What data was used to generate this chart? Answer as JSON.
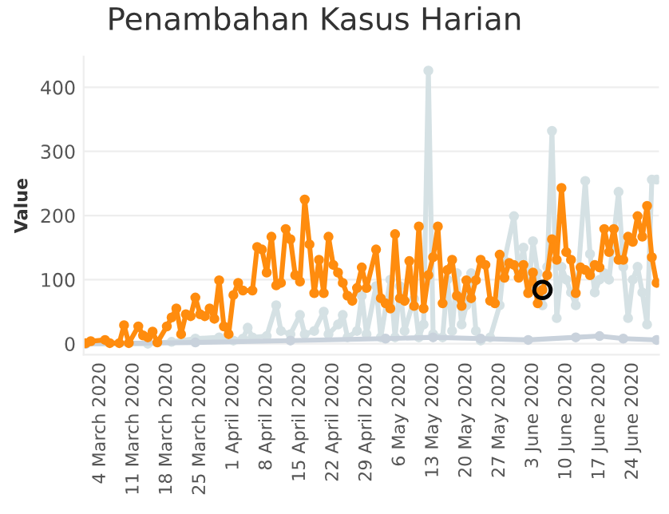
{
  "chart_data": {
    "type": "line",
    "title": "Penambahan Kasus Harian",
    "ylabel": "Value",
    "marker": "circle",
    "grid": "y",
    "xlim": [
      "2020-02-29T12:00",
      "2020-06-29T12:00"
    ],
    "xticks": [
      {
        "value": "2020-03-04",
        "label": "4 March 2020"
      },
      {
        "value": "2020-03-11",
        "label": "11 March 2020"
      },
      {
        "value": "2020-03-18",
        "label": "18 March 2020"
      },
      {
        "value": "2020-03-25",
        "label": "25 March 2020"
      },
      {
        "value": "2020-04-01",
        "label": "1 April 2020"
      },
      {
        "value": "2020-04-08",
        "label": "8 April 2020"
      },
      {
        "value": "2020-04-15",
        "label": "15 April 2020"
      },
      {
        "value": "2020-04-22",
        "label": "22 April 2020"
      },
      {
        "value": "2020-04-29",
        "label": "29 April 2020"
      },
      {
        "value": "2020-05-06",
        "label": "6 May 2020"
      },
      {
        "value": "2020-05-13",
        "label": "13 May 2020"
      },
      {
        "value": "2020-05-20",
        "label": "20 May 2020"
      },
      {
        "value": "2020-05-27",
        "label": "27 May 2020"
      },
      {
        "value": "2020-06-03",
        "label": "3 June 2020"
      },
      {
        "value": "2020-06-10",
        "label": "10 June 2020"
      },
      {
        "value": "2020-06-17",
        "label": "17 June 2020"
      },
      {
        "value": "2020-06-24",
        "label": "24 June 2020"
      }
    ],
    "ylim": [
      -17,
      448
    ],
    "yticks": [
      0,
      100,
      200,
      300,
      400
    ],
    "series": [
      {
        "color": "#c9d2dc",
        "x": [
          "2020-03-01",
          "2020-03-24",
          "2020-04-13",
          "2020-05-03",
          "2020-05-13",
          "2020-05-23",
          "2020-06-02",
          "2020-06-12",
          "2020-06-17",
          "2020-06-22",
          "2020-06-29"
        ],
        "values": [
          0,
          2,
          5,
          8,
          10,
          8,
          6,
          10,
          12,
          8,
          6
        ]
      },
      {
        "color": "#d5e1e4",
        "x": [
          "2020-03-01",
          "2020-03-14",
          "2020-03-19",
          "2020-03-24",
          "2020-03-29",
          "2020-04-01",
          "2020-04-03",
          "2020-04-04",
          "2020-04-05",
          "2020-04-08",
          "2020-04-10",
          "2020-04-11",
          "2020-04-13",
          "2020-04-15",
          "2020-04-16",
          "2020-04-18",
          "2020-04-20",
          "2020-04-21",
          "2020-04-23",
          "2020-04-24",
          "2020-04-25",
          "2020-04-27",
          "2020-04-28",
          "2020-04-29",
          "2020-05-01",
          "2020-05-02",
          "2020-05-04",
          "2020-05-05",
          "2020-05-06",
          "2020-05-07",
          "2020-05-09",
          "2020-05-10",
          "2020-05-11",
          "2020-05-12",
          "2020-05-13",
          "2020-05-15",
          "2020-05-16",
          "2020-05-17",
          "2020-05-18",
          "2020-05-19",
          "2020-05-20",
          "2020-05-21",
          "2020-05-22",
          "2020-05-23",
          "2020-05-25",
          "2020-05-27",
          "2020-05-28",
          "2020-05-30",
          "2020-05-31",
          "2020-06-01",
          "2020-06-02",
          "2020-06-03",
          "2020-06-04",
          "2020-06-05",
          "2020-06-06",
          "2020-06-07",
          "2020-06-08",
          "2020-06-09",
          "2020-06-10",
          "2020-06-11",
          "2020-06-12",
          "2020-06-14",
          "2020-06-15",
          "2020-06-16",
          "2020-06-17",
          "2020-06-18",
          "2020-06-19",
          "2020-06-21",
          "2020-06-22",
          "2020-06-23",
          "2020-06-24",
          "2020-06-25",
          "2020-06-26",
          "2020-06-27",
          "2020-06-28",
          "2020-06-29"
        ],
        "values": [
          0,
          0,
          3,
          8,
          10,
          5,
          8,
          25,
          10,
          12,
          60,
          20,
          15,
          45,
          15,
          20,
          50,
          15,
          30,
          45,
          10,
          20,
          75,
          15,
          90,
          10,
          100,
          10,
          90,
          20,
          70,
          10,
          30,
          426,
          15,
          10,
          100,
          20,
          110,
          30,
          60,
          110,
          20,
          5,
          10,
          60,
          130,
          199,
          110,
          150,
          80,
          160,
          110,
          60,
          120,
          332,
          40,
          120,
          100,
          80,
          60,
          254,
          140,
          80,
          100,
          110,
          100,
          237,
          120,
          40,
          100,
          120,
          80,
          30,
          256,
          256
        ]
      },
      {
        "color": "#ff8c0e",
        "x": [
          "2020-03-01",
          "2020-03-02",
          "2020-03-05",
          "2020-03-06",
          "2020-03-08",
          "2020-03-09",
          "2020-03-10",
          "2020-03-12",
          "2020-03-13",
          "2020-03-14",
          "2020-03-15",
          "2020-03-16",
          "2020-03-18",
          "2020-03-19",
          "2020-03-20",
          "2020-03-21",
          "2020-03-22",
          "2020-03-23",
          "2020-03-24",
          "2020-03-25",
          "2020-03-26",
          "2020-03-27",
          "2020-03-28",
          "2020-03-29",
          "2020-03-30",
          "2020-03-31",
          "2020-04-01",
          "2020-04-02",
          "2020-04-03",
          "2020-04-05",
          "2020-04-06",
          "2020-04-07",
          "2020-04-08",
          "2020-04-09",
          "2020-04-10",
          "2020-04-11",
          "2020-04-12",
          "2020-04-13",
          "2020-04-14",
          "2020-04-15",
          "2020-04-16",
          "2020-04-17",
          "2020-04-18",
          "2020-04-19",
          "2020-04-20",
          "2020-04-21",
          "2020-04-22",
          "2020-04-23",
          "2020-04-24",
          "2020-04-25",
          "2020-04-26",
          "2020-04-27",
          "2020-04-28",
          "2020-04-29",
          "2020-05-01",
          "2020-05-02",
          "2020-05-03",
          "2020-05-04",
          "2020-05-05",
          "2020-05-06",
          "2020-05-07",
          "2020-05-08",
          "2020-05-09",
          "2020-05-10",
          "2020-05-11",
          "2020-05-12",
          "2020-05-13",
          "2020-05-14",
          "2020-05-15",
          "2020-05-16",
          "2020-05-17",
          "2020-05-18",
          "2020-05-19",
          "2020-05-20",
          "2020-05-21",
          "2020-05-22",
          "2020-05-23",
          "2020-05-24",
          "2020-05-25",
          "2020-05-26",
          "2020-05-27",
          "2020-05-28",
          "2020-05-29",
          "2020-05-30",
          "2020-05-31",
          "2020-06-01",
          "2020-06-02",
          "2020-06-03",
          "2020-06-04",
          "2020-06-05",
          "2020-06-06",
          "2020-06-07",
          "2020-06-08",
          "2020-06-09",
          "2020-06-10",
          "2020-06-11",
          "2020-06-12",
          "2020-06-13",
          "2020-06-14",
          "2020-06-15",
          "2020-06-16",
          "2020-06-17",
          "2020-06-18",
          "2020-06-19",
          "2020-06-20",
          "2020-06-21",
          "2020-06-22",
          "2020-06-23",
          "2020-06-24",
          "2020-06-25",
          "2020-06-26",
          "2020-06-27",
          "2020-06-28",
          "2020-06-29"
        ],
        "values": [
          1,
          4,
          6,
          1,
          1,
          29,
          1,
          27,
          13,
          10,
          19,
          2,
          27,
          41,
          55,
          15,
          46,
          43,
          72,
          46,
          43,
          55,
          39,
          99,
          27,
          15,
          76,
          95,
          83,
          83,
          151,
          147,
          111,
          167,
          91,
          95,
          179,
          163,
          107,
          97,
          225,
          155,
          79,
          131,
          79,
          167,
          123,
          111,
          95,
          75,
          67,
          87,
          119,
          87,
          147,
          71,
          63,
          55,
          171,
          71,
          67,
          129,
          59,
          183,
          55,
          107,
          135,
          183,
          63,
          115,
          131,
          75,
          59,
          99,
          71,
          99,
          131,
          123,
          67,
          63,
          139,
          103,
          126,
          123,
          103,
          123,
          79,
          111,
          63,
          84,
          107,
          163,
          131,
          243,
          143,
          131,
          79,
          119,
          115,
          107,
          123,
          119,
          179,
          143,
          179,
          131,
          131,
          167,
          159,
          199,
          167,
          215,
          135,
          95
        ]
      },
      {
        "type": "scatter",
        "color": "#000000",
        "x": [
          "2020-06-05"
        ],
        "values": [
          84
        ]
      }
    ]
  }
}
